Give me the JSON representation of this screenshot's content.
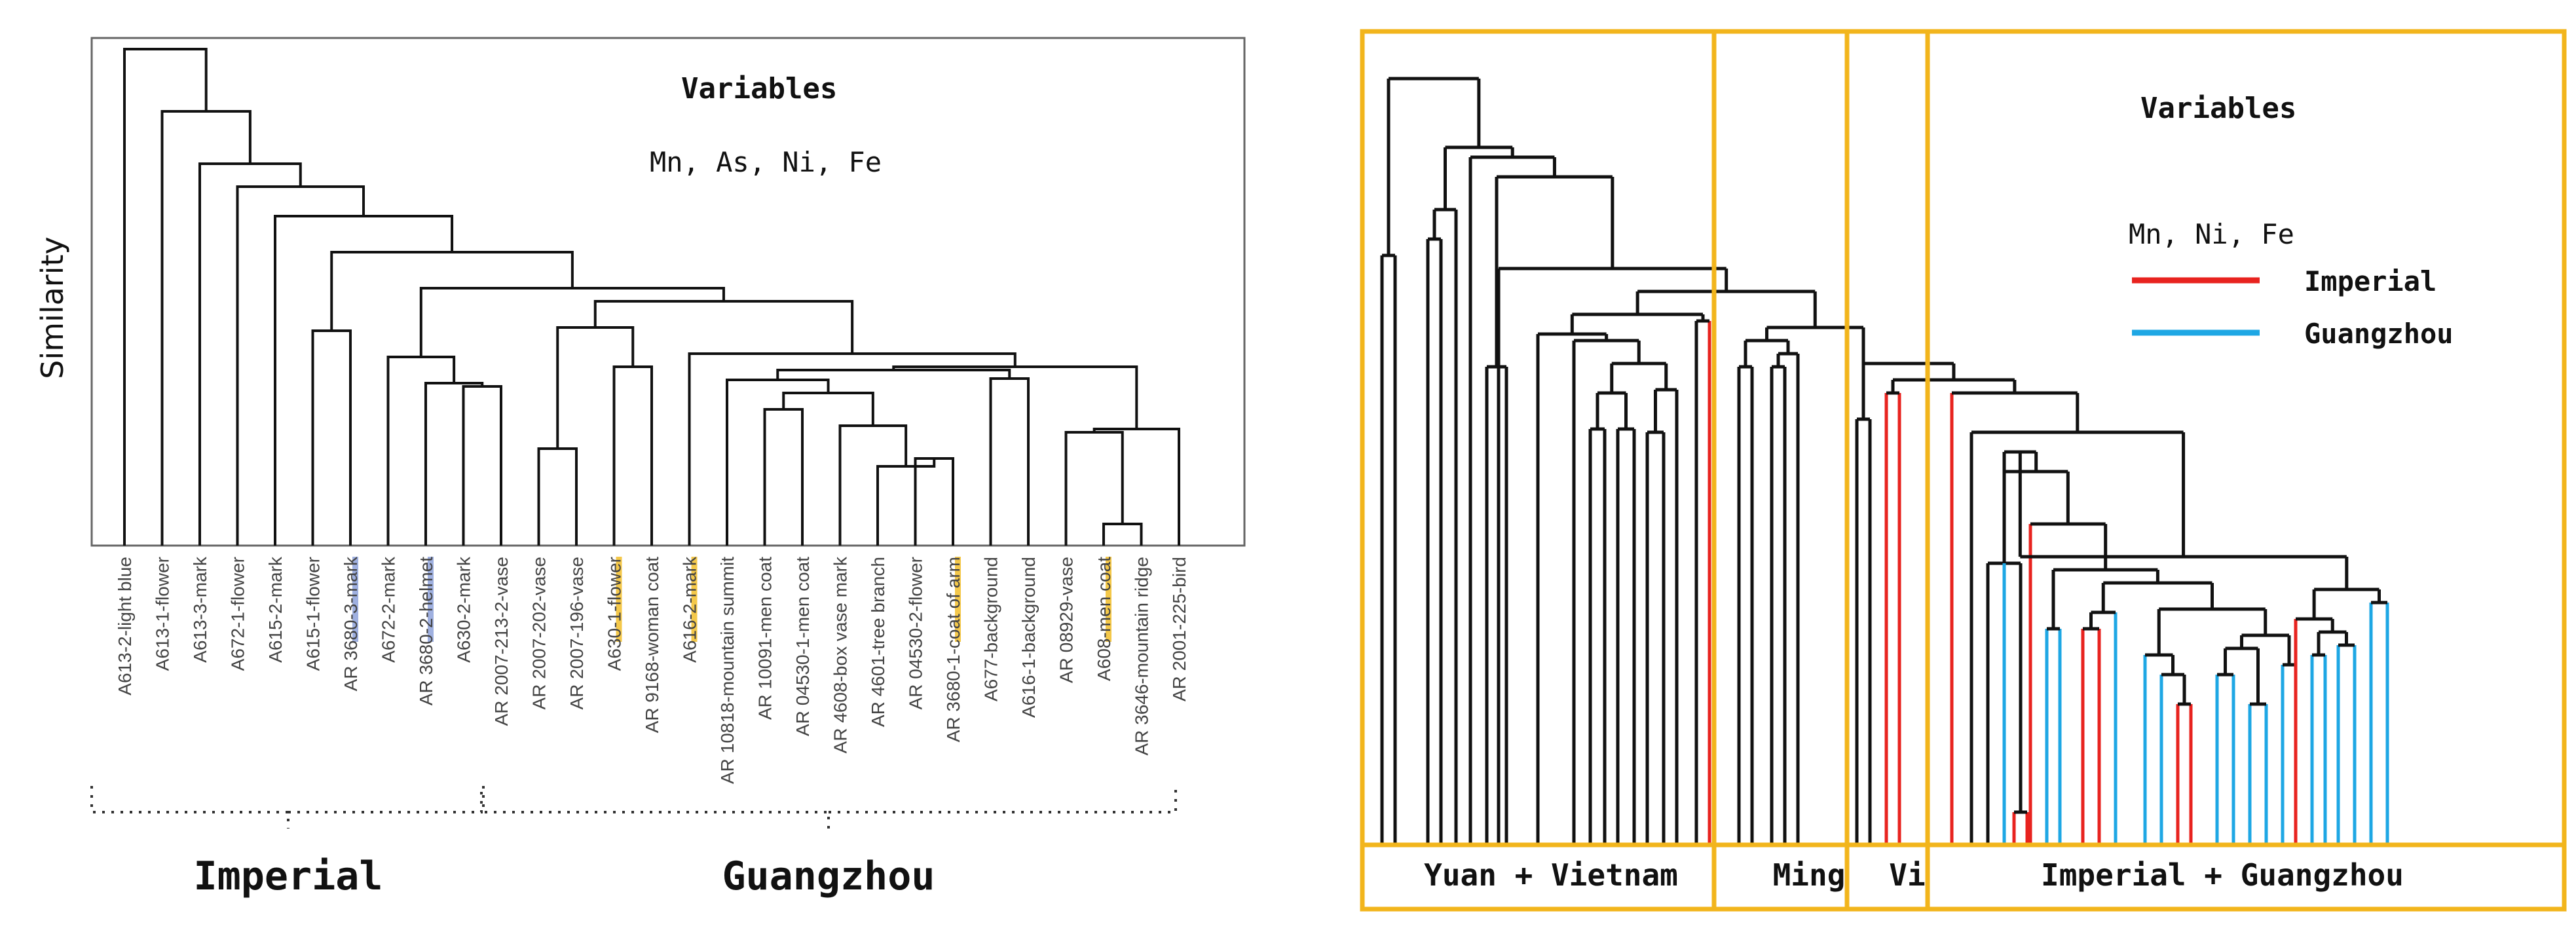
{
  "left": {
    "ylabel": "Similarity",
    "variables_title": "Variables",
    "variables_list": "Mn, As, Ni, Fe",
    "leaves": [
      "A613-2-light blue",
      "A613-1-flower",
      "A613-3-mark",
      "A672-1-flower",
      "A615-2-mark",
      "A615-1-flower",
      "AR 3680-3-mark",
      "A672-2-mark",
      "AR 3680-2-helmet",
      "A630-2-mark",
      "AR 2007-213-2-vase",
      "AR 2007-202-vase",
      "AR 2007-196-vase",
      "A630-1-flower",
      "AR 9168-woman coat",
      "A616-2-mark",
      "AR 10818-mountain summit",
      "AR 10091-men coat",
      "AR 04530-1-men coat",
      "AR 4608-box vase mark",
      "AR 4601-tree branch",
      "AR 04530-2-flower",
      "AR 3680-1-coat of arm",
      "A677-background",
      "A616-1-background",
      "AR 08929-vase",
      "A608-men coat",
      "AR 3646-mountain ridge",
      "AR 2001-225-bird"
    ],
    "groups": {
      "imperial": "Imperial",
      "guangzhou": "Guangzhou"
    },
    "colors": {
      "highlight_blue": "#9fb0e0",
      "highlight_yellow": "#f4c84a"
    }
  },
  "right": {
    "variables_title": "Variables",
    "variables_list": "Mn, Ni, Fe",
    "legend": [
      {
        "label": "Imperial",
        "color": "#e8231f"
      },
      {
        "label": "Guangzhou",
        "color": "#1ea7e4"
      }
    ],
    "groups": [
      "Yuan + Vietnam",
      "Ming",
      "Vi",
      "Imperial + Guangzhou"
    ],
    "box_color": "#f2b51c"
  }
}
